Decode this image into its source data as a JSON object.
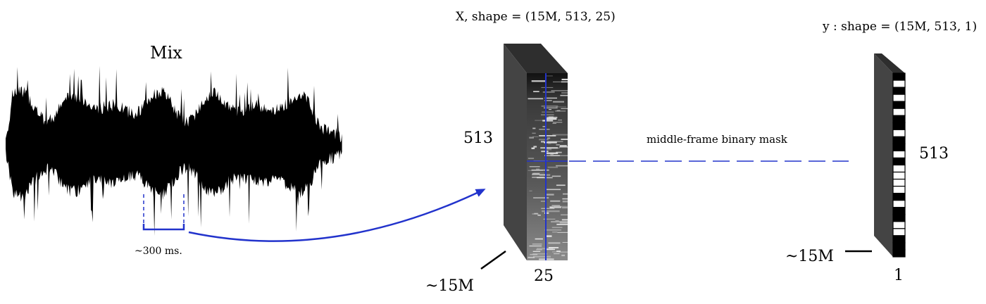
{
  "waveform": {
    "title": "Mix",
    "window_label": "~300 ms."
  },
  "input_tensor": {
    "shape_label": "X, shape = (15M, 513, 25)",
    "height_label": "513",
    "width_label": "25",
    "depth_label": "~15M"
  },
  "output_tensor": {
    "shape_label": "y : shape = (15M, 513, 1)",
    "height_label": "513",
    "width_label": "1",
    "depth_label": "~15M",
    "mask_cells": [
      1,
      0,
      1,
      0,
      1,
      0,
      1,
      1,
      0,
      1,
      1,
      0,
      1,
      0,
      0,
      0,
      0,
      1,
      0,
      1,
      1,
      0,
      0,
      1,
      1,
      1
    ]
  },
  "connector": {
    "label": "middle-frame binary mask"
  },
  "colors": {
    "accent_blue": "#2233cc",
    "slab_dark": "#3a3a3a",
    "slab_side": "#555555"
  }
}
